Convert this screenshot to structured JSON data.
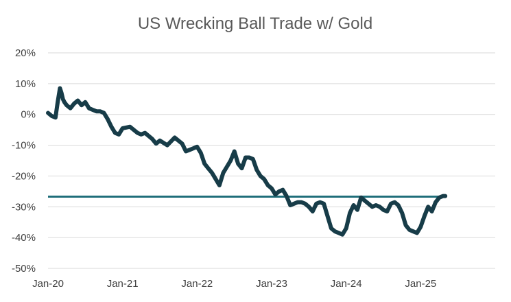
{
  "chart_data": {
    "type": "line",
    "title": "US Wrecking Ball Trade w/ Gold",
    "xlabel": "",
    "ylabel": "",
    "ylim": [
      -50,
      20
    ],
    "y_ticks": [
      "20%",
      "10%",
      "0%",
      "-10%",
      "-20%",
      "-30%",
      "-40%",
      "-50%"
    ],
    "y_tick_values": [
      20,
      10,
      0,
      -10,
      -20,
      -30,
      -40,
      -50
    ],
    "x_ticks": [
      "Jan-20",
      "Jan-21",
      "Jan-22",
      "Jan-23",
      "Jan-24",
      "Jan-25"
    ],
    "x_tick_values": [
      2020,
      2021,
      2022,
      2023,
      2024,
      2025
    ],
    "xlim": [
      2020,
      2026
    ],
    "grid": true,
    "reference_line": {
      "value": -26.7,
      "color": "#1f6e7a"
    },
    "series": [
      {
        "name": "US Wrecking Ball Trade w/ Gold",
        "color": "#173c48",
        "x": [
          2020.0,
          2020.05,
          2020.1,
          2020.13,
          2020.16,
          2020.18,
          2020.2,
          2020.22,
          2020.25,
          2020.3,
          2020.35,
          2020.4,
          2020.45,
          2020.5,
          2020.55,
          2020.6,
          2020.65,
          2020.7,
          2020.75,
          2020.8,
          2020.85,
          2020.9,
          2020.95,
          2021.0,
          2021.1,
          2021.2,
          2021.25,
          2021.3,
          2021.35,
          2021.4,
          2021.45,
          2021.5,
          2021.6,
          2021.7,
          2021.8,
          2021.85,
          2021.9,
          2021.95,
          2022.0,
          2022.05,
          2022.1,
          2022.15,
          2022.2,
          2022.25,
          2022.3,
          2022.35,
          2022.4,
          2022.45,
          2022.5,
          2022.55,
          2022.6,
          2022.65,
          2022.7,
          2022.75,
          2022.8,
          2022.85,
          2022.9,
          2022.95,
          2023.0,
          2023.05,
          2023.1,
          2023.15,
          2023.2,
          2023.25,
          2023.3,
          2023.35,
          2023.4,
          2023.45,
          2023.5,
          2023.55,
          2023.6,
          2023.65,
          2023.7,
          2023.75,
          2023.8,
          2023.85,
          2023.9,
          2023.95,
          2024.0,
          2024.05,
          2024.1,
          2024.15,
          2024.2,
          2024.25,
          2024.3,
          2024.35,
          2024.4,
          2024.45,
          2024.5,
          2024.55,
          2024.6,
          2024.65,
          2024.7,
          2024.75,
          2024.8,
          2024.85,
          2024.9,
          2024.95,
          2025.0,
          2025.05,
          2025.1,
          2025.15,
          2025.2,
          2025.25,
          2025.3,
          2025.33
        ],
        "values": [
          0.5,
          -0.5,
          -1.0,
          4.0,
          8.5,
          7.0,
          5.0,
          4.0,
          3.0,
          2.0,
          3.5,
          4.5,
          3.0,
          4.0,
          2.0,
          1.5,
          1.0,
          1.0,
          0.5,
          -1.5,
          -4.0,
          -6.0,
          -6.5,
          -4.5,
          -4.0,
          -6.0,
          -6.5,
          -6.0,
          -7.0,
          -8.0,
          -9.5,
          -8.5,
          -10.0,
          -7.5,
          -9.5,
          -12.0,
          -11.5,
          -11.0,
          -10.5,
          -12.5,
          -16.0,
          -17.5,
          -19.0,
          -21.0,
          -23.0,
          -19.0,
          -17.0,
          -15.0,
          -12.0,
          -16.0,
          -17.5,
          -14.0,
          -14.0,
          -14.5,
          -18.0,
          -20.0,
          -21.0,
          -23.0,
          -24.0,
          -26.0,
          -25.0,
          -24.5,
          -26.5,
          -29.5,
          -29.0,
          -28.5,
          -28.5,
          -29.0,
          -30.0,
          -31.5,
          -29.0,
          -28.5,
          -29.0,
          -33.0,
          -37.0,
          -38.0,
          -38.5,
          -39.0,
          -37.0,
          -32.0,
          -29.5,
          -31.0,
          -27.0,
          -28.0,
          -29.0,
          -30.0,
          -29.5,
          -30.0,
          -31.0,
          -31.5,
          -29.0,
          -28.5,
          -29.5,
          -32.0,
          -36.0,
          -37.5,
          -38.0,
          -38.5,
          -36.5,
          -33.0,
          -30.0,
          -31.5,
          -28.5,
          -27.0,
          -26.5,
          -26.5
        ]
      }
    ]
  }
}
